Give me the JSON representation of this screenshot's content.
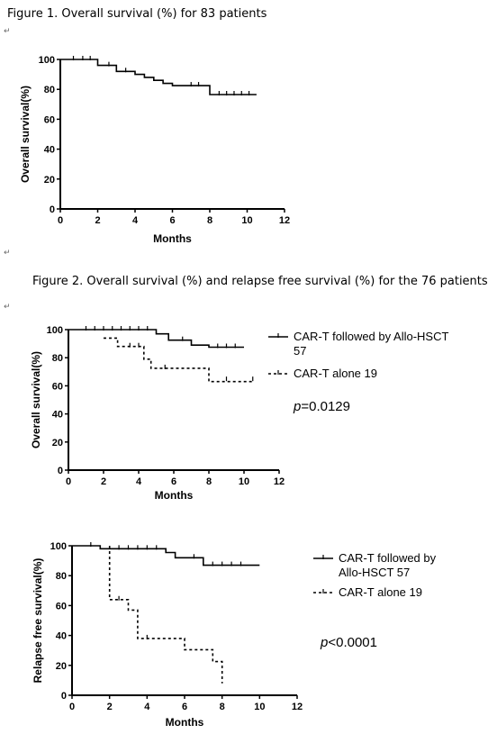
{
  "captions": {
    "fig1": "Figure 1. Overall survival (%) for 83 patients",
    "fig2": "Figure 2. Overall survival (%) and relapse free survival (%) for the 76 patients"
  },
  "chart_data": [
    {
      "type": "line",
      "title": "",
      "xlabel": "Months",
      "ylabel": "Overall survival(%)",
      "xlim": [
        0,
        12
      ],
      "ylim": [
        0,
        100
      ],
      "xticks": [
        0,
        2,
        4,
        6,
        8,
        10,
        12
      ],
      "yticks": [
        0,
        20,
        40,
        60,
        80,
        100
      ],
      "grid": false,
      "series": [
        {
          "name": "",
          "dash": "",
          "steps": [
            [
              0,
              100
            ],
            [
              2,
              100
            ],
            [
              2,
              96
            ],
            [
              3,
              96
            ],
            [
              3,
              92
            ],
            [
              4,
              92
            ],
            [
              4,
              90
            ],
            [
              4.5,
              90
            ],
            [
              4.5,
              88
            ],
            [
              5,
              88
            ],
            [
              5,
              86
            ],
            [
              5.5,
              86
            ],
            [
              5.5,
              84
            ],
            [
              6,
              84
            ],
            [
              6,
              82.5
            ],
            [
              8,
              82.5
            ],
            [
              8,
              76.5
            ],
            [
              10.5,
              76.5
            ]
          ],
          "censors": [
            [
              0.7,
              100
            ],
            [
              1.2,
              100
            ],
            [
              1.6,
              100
            ],
            [
              2.6,
              96
            ],
            [
              3.5,
              92
            ],
            [
              7,
              82.5
            ],
            [
              7.4,
              82.5
            ],
            [
              8.5,
              76.5
            ],
            [
              8.9,
              76.5
            ],
            [
              9.3,
              76.5
            ],
            [
              9.7,
              76.5
            ],
            [
              10.1,
              76.5
            ]
          ]
        }
      ]
    },
    {
      "type": "line",
      "title": "",
      "xlabel": "Months",
      "ylabel": "Overall survival(%)",
      "xlim": [
        0,
        12
      ],
      "ylim": [
        0,
        100
      ],
      "xticks": [
        0,
        2,
        4,
        6,
        8,
        10,
        12
      ],
      "yticks": [
        0,
        20,
        40,
        60,
        80,
        100
      ],
      "grid": false,
      "legend_position": "right",
      "annotation_prefix": "p",
      "annotation_value": "=0.0129",
      "series": [
        {
          "name": "CAR-T followed by Allo-HSCT 57",
          "dash": "",
          "steps": [
            [
              0,
              100
            ],
            [
              5,
              100
            ],
            [
              5,
              97
            ],
            [
              5.7,
              97
            ],
            [
              5.7,
              92.5
            ],
            [
              7,
              92.5
            ],
            [
              7,
              89
            ],
            [
              8,
              89
            ],
            [
              8,
              87.5
            ],
            [
              10,
              87.5
            ]
          ],
          "censors": [
            [
              1,
              100
            ],
            [
              1.5,
              100
            ],
            [
              2,
              100
            ],
            [
              2.5,
              100
            ],
            [
              3,
              100
            ],
            [
              3.5,
              100
            ],
            [
              4,
              100
            ],
            [
              4.5,
              100
            ],
            [
              6.5,
              92.5
            ],
            [
              8.5,
              87.5
            ],
            [
              9,
              87.5
            ],
            [
              9.5,
              87.5
            ]
          ]
        },
        {
          "name": "CAR-T alone 19",
          "dash": "3,3",
          "steps": [
            [
              2,
              94
            ],
            [
              2,
              94
            ],
            [
              2.8,
              94
            ],
            [
              2.8,
              88
            ],
            [
              4.3,
              88
            ],
            [
              4.3,
              79
            ],
            [
              4.7,
              79
            ],
            [
              4.7,
              72.5
            ],
            [
              8,
              72.5
            ],
            [
              8,
              63
            ],
            [
              10.5,
              63
            ]
          ],
          "censors": [
            [
              3.5,
              88
            ],
            [
              4,
              88
            ],
            [
              5.5,
              72.5
            ],
            [
              9,
              64
            ],
            [
              10.5,
              64
            ]
          ]
        }
      ]
    },
    {
      "type": "line",
      "title": "",
      "xlabel": "Months",
      "ylabel": "Relapse free survival(%)",
      "xlim": [
        0,
        12
      ],
      "ylim": [
        0,
        100
      ],
      "xticks": [
        0,
        2,
        4,
        6,
        8,
        10,
        12
      ],
      "yticks": [
        0,
        20,
        40,
        60,
        80,
        100
      ],
      "grid": false,
      "legend_position": "right",
      "annotation_prefix": "p",
      "annotation_value": "<0.0001",
      "series": [
        {
          "name": "CAR-T followed by Allo-HSCT 57",
          "dash": "",
          "steps": [
            [
              0,
              100
            ],
            [
              1.5,
              100
            ],
            [
              1.5,
              98
            ],
            [
              5,
              98
            ],
            [
              5,
              95.5
            ],
            [
              5.5,
              95.5
            ],
            [
              5.5,
              92
            ],
            [
              7,
              92
            ],
            [
              7,
              87
            ],
            [
              10,
              87
            ]
          ],
          "censors": [
            [
              1,
              100
            ],
            [
              2.5,
              98
            ],
            [
              3,
              98
            ],
            [
              3.5,
              98
            ],
            [
              4,
              98
            ],
            [
              4.5,
              98
            ],
            [
              6.5,
              92
            ],
            [
              7.5,
              87
            ],
            [
              8,
              87
            ],
            [
              8.5,
              87
            ],
            [
              9,
              87
            ]
          ]
        },
        {
          "name": "CAR-T alone 19",
          "dash": "3,3",
          "steps": [
            [
              2,
              100
            ],
            [
              2,
              64
            ],
            [
              3,
              64
            ],
            [
              3,
              57
            ],
            [
              3.5,
              57
            ],
            [
              3.5,
              38
            ],
            [
              6,
              38
            ],
            [
              6,
              30.5
            ],
            [
              7.5,
              30.5
            ],
            [
              7.5,
              22.5
            ],
            [
              8,
              22.5
            ],
            [
              8,
              8
            ]
          ],
          "censors": [
            [
              2.5,
              64
            ],
            [
              4,
              38
            ]
          ]
        }
      ]
    }
  ]
}
